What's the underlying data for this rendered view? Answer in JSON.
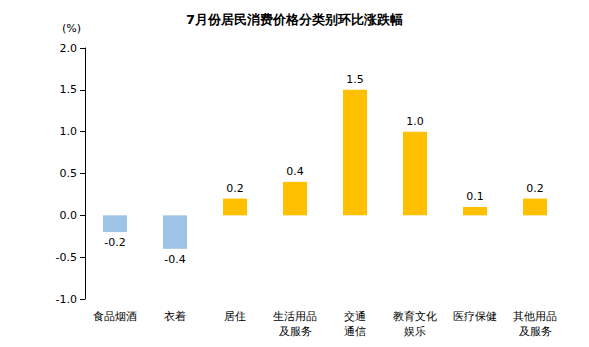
{
  "chart_data": {
    "type": "bar",
    "title": "7月份居民消费价格分类别环比涨跌幅",
    "ylabel": "(%)",
    "categories": [
      "食品烟酒",
      "衣着",
      "居住",
      "生活用品\n及服务",
      "交通\n通信",
      "教育文化\n娱乐",
      "医疗保健",
      "其他用品\n及服务"
    ],
    "values": [
      -0.2,
      -0.4,
      0.2,
      0.4,
      1.5,
      1.0,
      0.1,
      0.2
    ],
    "value_labels": [
      "-0.2",
      "-0.4",
      "0.2",
      "0.4",
      "1.5",
      "1.0",
      "0.1",
      "0.2"
    ],
    "colors": [
      "#9dc3e6",
      "#9dc3e6",
      "#ffc000",
      "#ffc000",
      "#ffc000",
      "#ffc000",
      "#ffc000",
      "#ffc000"
    ],
    "ylim": [
      -1,
      2
    ],
    "yticks": [
      {
        "value": -1,
        "label": "-1.0"
      },
      -0.5,
      {
        "value": 0,
        "label": "0.0"
      },
      0.5,
      {
        "value": 1,
        "label": "1.0"
      },
      1.5,
      {
        "value": 2,
        "label": "2.0"
      }
    ],
    "grid": false,
    "data_labels": true
  }
}
